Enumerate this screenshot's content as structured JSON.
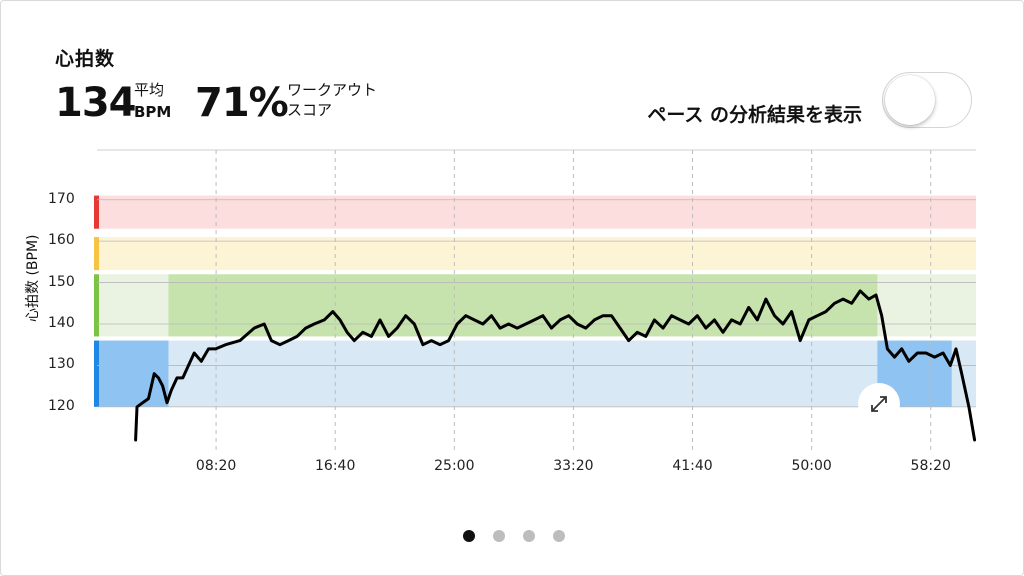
{
  "header": {
    "title": "心拍数",
    "avg_value": "134",
    "avg_label_top": "平均",
    "avg_label_bottom": "BPM",
    "score_value": "71%",
    "score_label_line1": "ワークアウト",
    "score_label_line2": "スコア"
  },
  "toggle": {
    "label": "ペース の分析結果を表示",
    "state": "off"
  },
  "chart": {
    "y_axis_title": "心拍数 (BPM)",
    "expand_icon": "expand-diagonal-icon"
  },
  "chart_data": {
    "type": "line",
    "ylabel": "心拍数 (BPM)",
    "xlabel": "",
    "x_unit": "minutes",
    "ylim": [
      112,
      182
    ],
    "xlim": [
      0,
      61.5
    ],
    "y_ticks": [
      170,
      160,
      150,
      140,
      130,
      120
    ],
    "x_tick_labels": [
      "08:20",
      "16:40",
      "25:00",
      "33:20",
      "41:40",
      "50:00",
      "58:20"
    ],
    "x_tick_values": [
      8.333,
      16.667,
      25,
      33.333,
      41.667,
      50,
      58.333
    ],
    "zones": [
      {
        "name": "red",
        "min": 163,
        "max": 171,
        "color": "#fcdede",
        "bar_color": "#e53935"
      },
      {
        "name": "yellow",
        "min": 153,
        "max": 161,
        "color": "#fdf4d6",
        "bar_color": "#f6c343"
      },
      {
        "name": "green",
        "min": 137,
        "max": 152,
        "color": "#eaf3e2",
        "bar_color": "#7cc243",
        "active_color": "#c7e3ad"
      },
      {
        "name": "blue",
        "min": 120,
        "max": 136,
        "color": "#d8e8f4",
        "bar_color": "#1e88e5",
        "active_color": "#8fc3f1"
      }
    ],
    "active_segments": [
      {
        "zone": "blue",
        "x_start": 0,
        "x_end": 5
      },
      {
        "zone": "green",
        "x_start": 5,
        "x_end": 54.6
      },
      {
        "zone": "blue",
        "x_start": 54.6,
        "x_end": 59.8
      }
    ],
    "series": [
      {
        "x": [
          2.7,
          2.8,
          3.2,
          3.6,
          4.0,
          4.3,
          4.6,
          4.9,
          5.2,
          5.6,
          6.0,
          6.4,
          6.8,
          7.3,
          7.8,
          8.3,
          9.0,
          10.0,
          11.0,
          11.7,
          12.2,
          12.8,
          13.4,
          14.0,
          14.6,
          15.2,
          15.9,
          16.5,
          17.0,
          17.5,
          18.0,
          18.6,
          19.2,
          19.8,
          20.4,
          21.0,
          21.6,
          22.2,
          22.8,
          23.4,
          24.0,
          24.6,
          25.2,
          25.8,
          26.4,
          27.0,
          27.6,
          28.2,
          28.8,
          29.4,
          30.0,
          30.6,
          31.2,
          31.8,
          32.4,
          33.0,
          33.6,
          34.2,
          34.8,
          35.4,
          36.0,
          36.6,
          37.2,
          37.8,
          38.4,
          39.0,
          39.6,
          40.2,
          40.8,
          41.4,
          42.0,
          42.6,
          43.2,
          43.8,
          44.4,
          45.0,
          45.6,
          46.2,
          46.8,
          47.4,
          48.0,
          48.6,
          49.2,
          49.8,
          50.4,
          51.0,
          51.6,
          52.2,
          52.8,
          53.4,
          54.0,
          54.5,
          54.9,
          55.3,
          55.8,
          56.3,
          56.8,
          57.4,
          58.0,
          58.6,
          59.2,
          59.7,
          60.1,
          60.5,
          61.0,
          61.4
        ],
        "y": [
          112,
          120,
          121,
          122,
          128,
          127,
          125,
          121,
          124,
          127,
          127,
          130,
          133,
          131,
          134,
          134,
          135,
          136,
          139,
          140,
          136,
          135,
          136,
          137,
          139,
          140,
          141,
          143,
          141,
          138,
          136,
          138,
          137,
          141,
          137,
          139,
          142,
          140,
          135,
          136,
          135,
          136,
          140,
          142,
          141,
          140,
          142,
          139,
          140,
          139,
          140,
          141,
          142,
          139,
          141,
          142,
          140,
          139,
          141,
          142,
          142,
          139,
          136,
          138,
          137,
          141,
          139,
          142,
          141,
          140,
          142,
          139,
          141,
          138,
          141,
          140,
          144,
          141,
          146,
          142,
          140,
          143,
          136,
          141,
          142,
          143,
          145,
          146,
          145,
          148,
          146,
          147,
          142,
          134,
          132,
          134,
          131,
          133,
          133,
          132,
          133,
          130,
          134,
          128,
          120,
          112
        ]
      }
    ]
  },
  "pagination": {
    "count": 4,
    "active_index": 0
  }
}
